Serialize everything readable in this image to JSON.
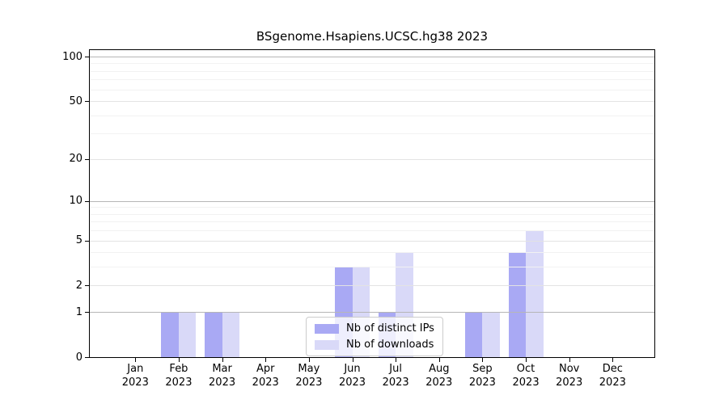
{
  "chart_data": {
    "type": "bar",
    "title": "BSgenome.Hsapiens.UCSC.hg38 2023",
    "y_scale": "log1p",
    "ylim": [
      0,
      112
    ],
    "grid": "on",
    "legend_position": "inside-bottom-center",
    "x_ticks": [
      {
        "line1": "Jan",
        "line2": "2023"
      },
      {
        "line1": "Feb",
        "line2": "2023"
      },
      {
        "line1": "Mar",
        "line2": "2023"
      },
      {
        "line1": "Apr",
        "line2": "2023"
      },
      {
        "line1": "May",
        "line2": "2023"
      },
      {
        "line1": "Jun",
        "line2": "2023"
      },
      {
        "line1": "Jul",
        "line2": "2023"
      },
      {
        "line1": "Aug",
        "line2": "2023"
      },
      {
        "line1": "Sep",
        "line2": "2023"
      },
      {
        "line1": "Oct",
        "line2": "2023"
      },
      {
        "line1": "Nov",
        "line2": "2023"
      },
      {
        "line1": "Dec",
        "line2": "2023"
      }
    ],
    "series": [
      {
        "name": "Nb of distinct IPs",
        "color": "#a9a9f4",
        "values": [
          0,
          1,
          1,
          0,
          0,
          3,
          1,
          0,
          1,
          4,
          0,
          0
        ]
      },
      {
        "name": "Nb of downloads",
        "color": "#d9d9f8",
        "values": [
          0,
          1,
          1,
          0,
          0,
          3,
          4,
          0,
          1,
          6,
          0,
          0
        ]
      }
    ],
    "y_ticks": [
      0,
      1,
      2,
      5,
      10,
      20,
      50,
      100
    ],
    "y_minor_ticks": [
      3,
      4,
      6,
      7,
      8,
      9,
      30,
      40,
      60,
      70,
      80,
      90
    ],
    "colors": {
      "spine": "#000000",
      "decade_gridline": "#b6b6b6",
      "tick_gridline": "#e3e3e3",
      "minor_gridline": "#f2f2f2"
    }
  }
}
